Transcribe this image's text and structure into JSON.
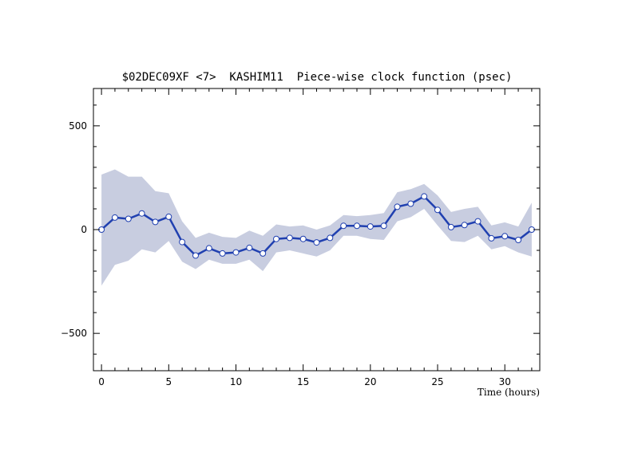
{
  "chart_data": {
    "type": "line",
    "title": "$02DEC09XF <7>  KASHIM11  Piece-wise clock function (psec)",
    "xlabel": "Time (hours)",
    "ylabel": "",
    "xlim": [
      -0.6,
      32.6
    ],
    "ylim": [
      -680,
      680
    ],
    "xticks": [
      0,
      5,
      10,
      15,
      20,
      25,
      30
    ],
    "yticks": [
      -500,
      0,
      500
    ],
    "xtick_labels": [
      "0",
      "5",
      "10",
      "15",
      "20",
      "25",
      "30"
    ],
    "ytick_labels": [
      "−500",
      "0",
      "500"
    ],
    "grid": false,
    "colors": {
      "line": "#2040b0",
      "band": "#c8cde0",
      "marker_fill": "#ffffff",
      "axis": "#000000"
    },
    "series": [
      {
        "x": [
          0,
          1,
          2,
          3,
          4,
          5,
          6,
          7,
          8,
          9,
          10,
          11,
          12,
          13,
          14,
          15,
          16,
          17,
          18,
          19,
          20,
          21,
          22,
          23,
          24,
          25,
          26,
          27,
          28,
          29,
          30,
          31,
          32
        ],
        "values": [
          0,
          58,
          52,
          78,
          37,
          62,
          -60,
          -125,
          -90,
          -115,
          -110,
          -88,
          -115,
          -45,
          -40,
          -45,
          -62,
          -40,
          18,
          18,
          15,
          18,
          110,
          125,
          160,
          95,
          12,
          22,
          40,
          -42,
          -32,
          -50,
          0
        ],
        "upper": [
          265,
          290,
          255,
          255,
          185,
          175,
          40,
          -40,
          -15,
          -35,
          -40,
          -5,
          -30,
          25,
          15,
          20,
          0,
          20,
          70,
          65,
          70,
          80,
          180,
          195,
          220,
          165,
          85,
          100,
          110,
          20,
          35,
          15,
          130
        ],
        "lower": [
          -270,
          -170,
          -150,
          -95,
          -110,
          -55,
          -155,
          -190,
          -145,
          -165,
          -165,
          -145,
          -200,
          -110,
          -100,
          -115,
          -130,
          -100,
          -30,
          -30,
          -45,
          -50,
          40,
          60,
          100,
          20,
          -55,
          -60,
          -30,
          -95,
          -80,
          -110,
          -130
        ]
      }
    ]
  }
}
